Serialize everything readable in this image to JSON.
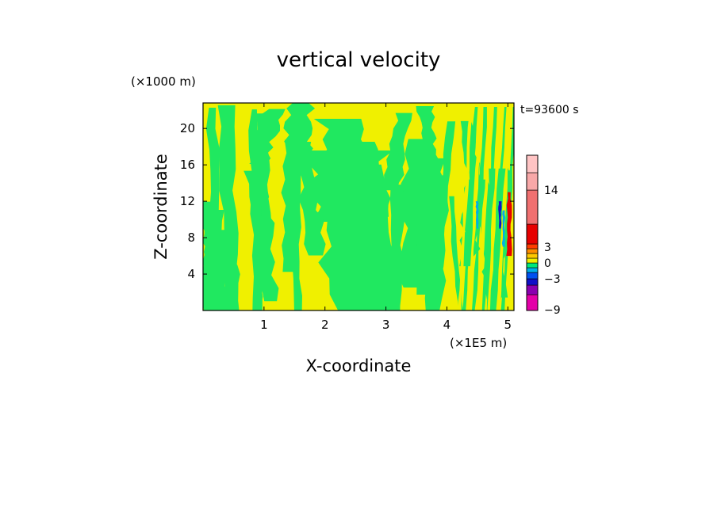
{
  "chart_data": {
    "type": "heatmap",
    "title": "vertical velocity",
    "xlabel": "X-coordinate",
    "ylabel": "Z-coordinate",
    "x_unit": "(×1E5 m)",
    "y_unit": "(×1000 m)",
    "time_label": "t=93600 s",
    "xlim": [
      0,
      5.1
    ],
    "ylim": [
      0,
      22.8
    ],
    "x_ticks": [
      1,
      2,
      3,
      4,
      5
    ],
    "y_ticks": [
      4,
      8,
      12,
      16,
      20
    ],
    "grid": false,
    "colorbar": {
      "tick_labels": [
        "14",
        "3",
        "0",
        "−3",
        "−9"
      ],
      "tick_values": [
        14,
        3,
        0,
        -3,
        -9
      ],
      "levels": [
        -9,
        -7,
        -5,
        -3,
        -2,
        -1,
        0,
        1,
        2,
        3,
        5,
        9,
        17,
        21
      ],
      "colors": [
        "#e400a8",
        "#8a00b0",
        "#1010c8",
        "#0050f0",
        "#00b0e8",
        "#00e878",
        "#f0f000",
        "#ffc800",
        "#ff8c00",
        "#ff3c00",
        "#e60000",
        "#f07070",
        "#f8a8a8",
        "#ffc4c4"
      ]
    },
    "field_colors": {
      "updraft_weak": "#f0f000",
      "downdraft_weak": "#20e860",
      "strong_up": "#e60000",
      "strong_down": "#1010c8"
    }
  }
}
